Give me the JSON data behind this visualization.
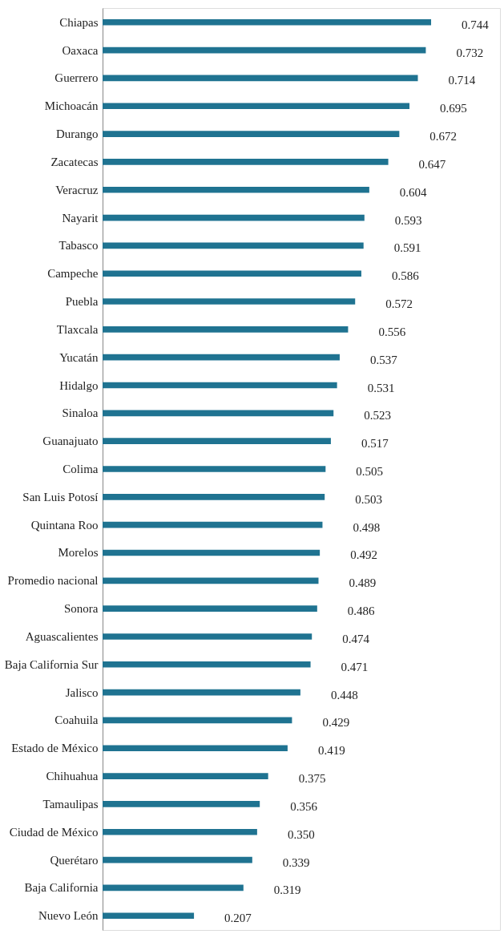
{
  "chart_data": {
    "type": "bar",
    "orientation": "horizontal",
    "tick_labels": "y",
    "grid": false,
    "value_labels": [
      "0.744",
      "0.732",
      "0.714",
      "0.695",
      "0.672",
      "0.647",
      "0.604",
      "0.593",
      "0.591",
      "0.586",
      "0.572",
      "0.556",
      "0.537",
      "0.531",
      "0.523",
      "0.517",
      "0.505",
      "0.503",
      "0.498",
      "0.492",
      "0.489",
      "0.486",
      "0.474",
      "0.471",
      "0.448",
      "0.429",
      "0.419",
      "0.375",
      "0.356",
      "0.350",
      "0.339",
      "0.319",
      "0.207"
    ],
    "xlim": [
      0,
      0.9
    ],
    "categories": [
      "Chiapas",
      "Oaxaca",
      "Guerrero",
      "Michoacán",
      "Durango",
      "Zacatecas",
      "Veracruz",
      "Nayarit",
      "Tabasco",
      "Campeche",
      "Puebla",
      "Tlaxcala",
      "Yucatán",
      "Hidalgo",
      "Sinaloa",
      "Guanajuato",
      "Colima",
      "San Luis Potosí",
      "Quintana Roo",
      "Morelos",
      "Promedio nacional",
      "Sonora",
      "Aguascalientes",
      "Baja California Sur",
      "Jalisco",
      "Coahuila",
      "Estado de México",
      "Chihuahua",
      "Tamaulipas",
      "Ciudad de México",
      "Querétaro",
      "Baja California",
      "Nuevo León"
    ],
    "values": [
      0.744,
      0.732,
      0.714,
      0.695,
      0.672,
      0.647,
      0.604,
      0.593,
      0.591,
      0.586,
      0.572,
      0.556,
      0.537,
      0.531,
      0.523,
      0.517,
      0.505,
      0.503,
      0.498,
      0.492,
      0.489,
      0.486,
      0.474,
      0.471,
      0.448,
      0.429,
      0.419,
      0.375,
      0.356,
      0.35,
      0.339,
      0.319,
      0.207
    ],
    "color": "#1f7391"
  }
}
